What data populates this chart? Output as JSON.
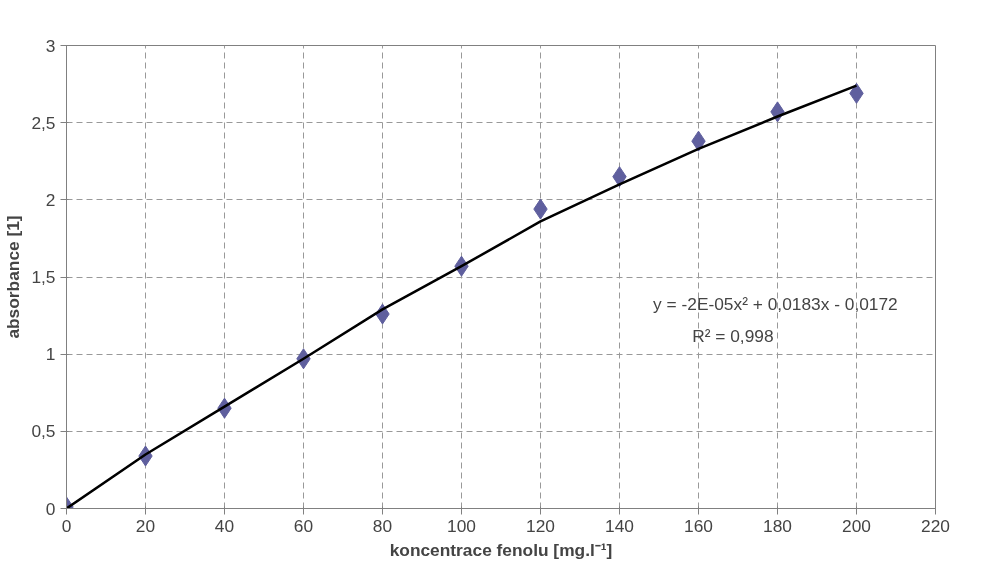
{
  "chart_data": {
    "type": "scatter",
    "xlabel": "koncentrace fenolu [mg.l⁻¹]",
    "ylabel": "absorbance [1]",
    "x": [
      0,
      20,
      40,
      60,
      80,
      100,
      120,
      140,
      160,
      180,
      200
    ],
    "series": [
      {
        "color": "#5f5f9e",
        "marker": "diamond",
        "values": [
          0.01,
          0.34,
          0.65,
          0.97,
          1.26,
          1.57,
          1.94,
          2.15,
          2.38,
          2.57,
          2.69
        ]
      },
      {
        "type": "line",
        "color": "#000000",
        "line_style": "solid",
        "marker": "none",
        "x": [
          0,
          20,
          40,
          60,
          80,
          100,
          120,
          140,
          160,
          180,
          200
        ],
        "values": [
          0.0,
          0.35,
          0.66,
          0.97,
          1.29,
          1.57,
          1.86,
          2.1,
          2.33,
          2.54,
          2.74
        ]
      }
    ],
    "annotations": [
      "y = -2E-05x² + 0,0183x - 0,0172",
      "R² = 0,998"
    ],
    "xlim": [
      0,
      220
    ],
    "xticks": [
      0,
      20,
      40,
      60,
      80,
      100,
      120,
      140,
      160,
      180,
      200,
      220
    ],
    "ylim": [
      0,
      3
    ],
    "yticks": [
      0,
      {
        "value": 0.5,
        "label": "0,5"
      },
      1,
      {
        "value": 1.5,
        "label": "1,5"
      },
      2,
      {
        "value": 2.5,
        "label": "2,5"
      },
      3
    ],
    "grid": true
  }
}
